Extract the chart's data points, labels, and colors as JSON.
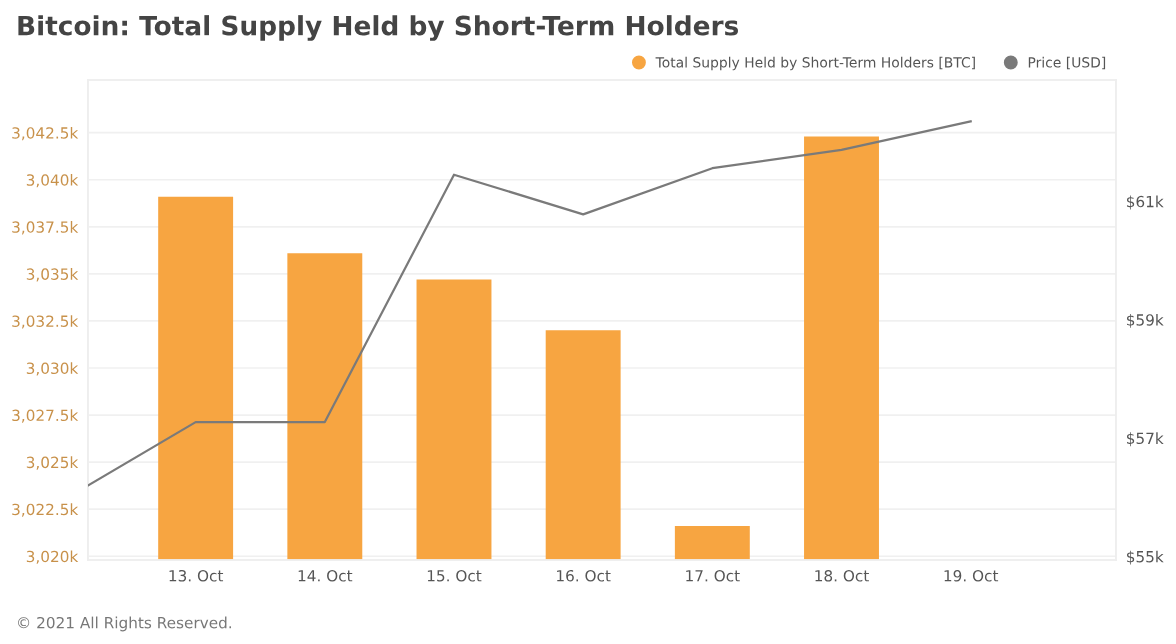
{
  "chart_data": {
    "type": "bar",
    "title": "Bitcoin: Total Supply Held by Short-Term Holders",
    "x": [
      "2021-10-13",
      "2021-10-14",
      "2021-10-15",
      "2021-10-16",
      "2021-10-17",
      "2021-10-18"
    ],
    "series": [
      {
        "name": "Total Supply Held by Short-Term Holders [BTC]",
        "color": "#f7a541",
        "values": [
          3039100,
          3036100,
          3034700,
          3032000,
          3021600,
          3042300
        ]
      },
      {
        "name": "Price [USD]",
        "color": "#7a7a7a",
        "type": "line",
        "axis": "y2",
        "x": [
          "2021-10-12T04:00",
          "2021-10-13",
          "2021-10-14",
          "2021-10-15",
          "2021-10-16",
          "2021-10-17",
          "2021-10-18",
          "2021-10-19"
        ],
        "values": [
          56200,
          57270,
          57270,
          61450,
          60780,
          61560,
          61870,
          62350
        ]
      }
    ],
    "xlim": [
      "2021-10-12T04:00",
      "2021-10-20T03:00"
    ],
    "xticks": [
      {
        "value": "2021-10-13",
        "label": "13. Oct"
      },
      {
        "value": "2021-10-14",
        "label": "14. Oct"
      },
      {
        "value": "2021-10-15",
        "label": "15. Oct"
      },
      {
        "value": "2021-10-16",
        "label": "16. Oct"
      },
      {
        "value": "2021-10-17",
        "label": "17. Oct"
      },
      {
        "value": "2021-10-18",
        "label": "18. Oct"
      },
      {
        "value": "2021-10-19",
        "label": "19. Oct"
      }
    ],
    "ylim": [
      3019800,
      3045300
    ],
    "yticks": [
      {
        "value": 3020000,
        "label": "3,020k"
      },
      {
        "value": 3022500,
        "label": "3,022.5k"
      },
      {
        "value": 3025000,
        "label": "3,025k"
      },
      {
        "value": 3027500,
        "label": "3,027.5k"
      },
      {
        "value": 3030000,
        "label": "3,030k"
      },
      {
        "value": 3032500,
        "label": "3,032.5k"
      },
      {
        "value": 3035000,
        "label": "3,035k"
      },
      {
        "value": 3037500,
        "label": "3,037.5k"
      },
      {
        "value": 3040000,
        "label": "3,040k"
      },
      {
        "value": 3042500,
        "label": "3,042.5k"
      }
    ],
    "y2lim": [
      54940,
      63050
    ],
    "y2ticks": [
      {
        "value": 55000,
        "label": "$55k"
      },
      {
        "value": 57000,
        "label": "$57k"
      },
      {
        "value": 59000,
        "label": "$59k"
      },
      {
        "value": 61000,
        "label": "$61k"
      }
    ],
    "grid": "y",
    "legend": "top right",
    "marker": "none",
    "line_style": "solid",
    "annotations": [
      "© 2021 All Rights Reserved."
    ]
  }
}
